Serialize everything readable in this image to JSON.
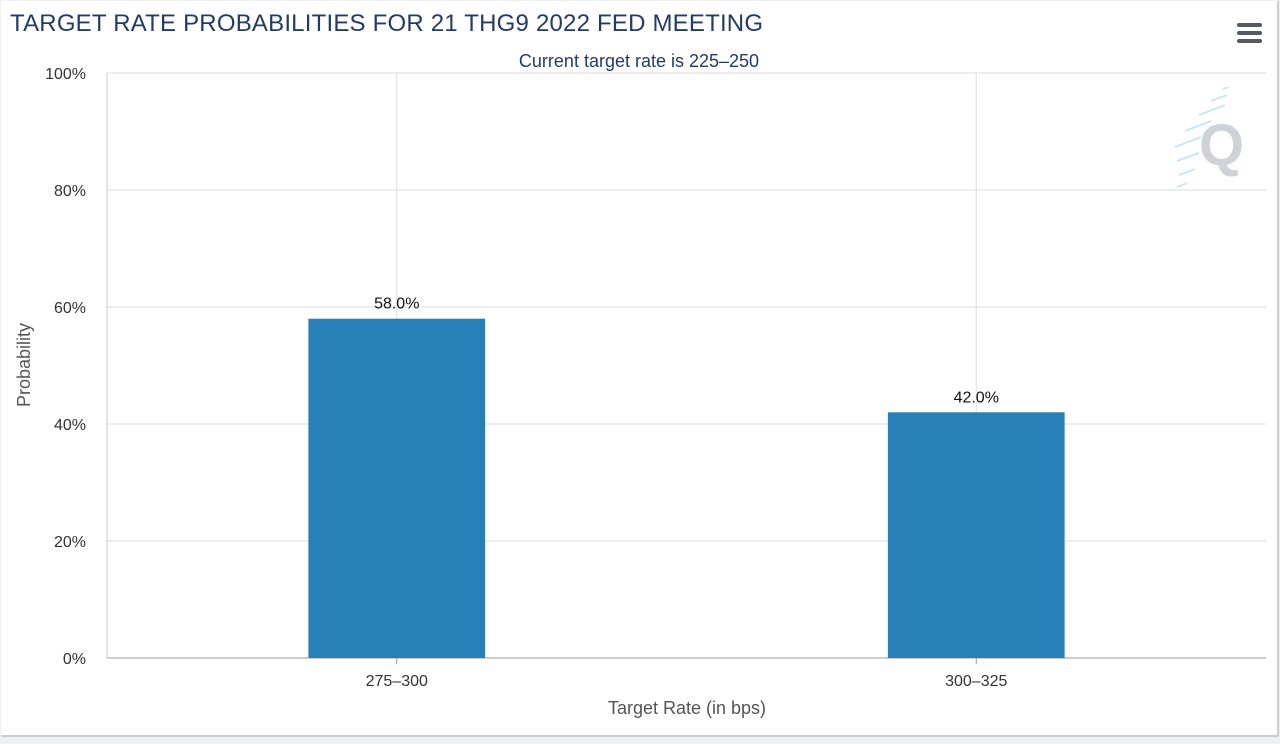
{
  "header": {
    "title": "TARGET RATE PROBABILITIES FOR 21 THG9 2022 FED MEETING",
    "subtitle": "Current target rate is 225–250"
  },
  "menu": {
    "icon": "hamburger-menu-icon"
  },
  "watermark": {
    "icon": "q-logo-watermark-icon"
  },
  "colors": {
    "bar": "#2980b9",
    "title": "#243b6a",
    "grid": "#dddddd"
  },
  "chart_data": {
    "type": "bar",
    "title": "TARGET RATE PROBABILITIES FOR 21 THG9 2022 FED MEETING",
    "subtitle": "Current target rate is 225–250",
    "xlabel": "Target Rate (in bps)",
    "ylabel": "Probability",
    "categories": [
      "275–300",
      "300–325"
    ],
    "values": [
      58.0,
      42.0
    ],
    "data_labels": [
      "58.0%",
      "42.0%"
    ],
    "ylim": [
      0,
      100
    ],
    "yticks": [
      0,
      20,
      40,
      60,
      80,
      100
    ],
    "ytick_labels": [
      "0%",
      "20%",
      "40%",
      "60%",
      "80%",
      "100%"
    ],
    "grid": true,
    "legend": "none"
  }
}
